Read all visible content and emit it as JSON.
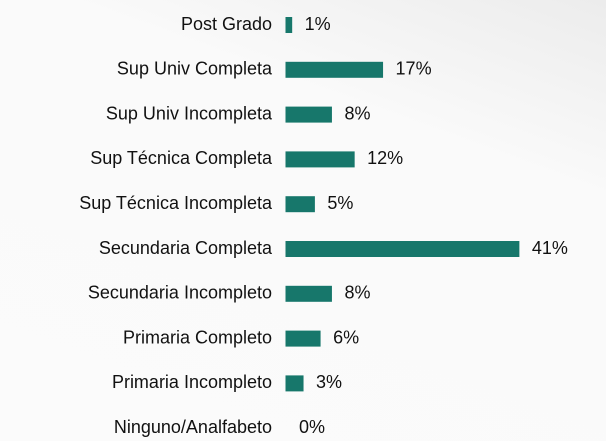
{
  "chart_data": {
    "type": "bar",
    "orientation": "horizontal",
    "categories": [
      "Post Grado",
      "Sup Univ Completa",
      "Sup Univ Incompleta",
      "Sup Técnica Completa",
      "Sup Técnica Incompleta",
      "Secundaria Completa",
      "Secundaria Incompleto",
      "Primaria Completo",
      "Primaria Incompleto",
      "Ninguno/Analfabeto"
    ],
    "values": [
      1,
      17,
      8,
      12,
      5,
      41,
      8,
      6,
      3,
      0
    ],
    "value_labels": [
      "1%",
      "17%",
      "8%",
      "12%",
      "5%",
      "41%",
      "8%",
      "6%",
      "3%",
      "0%"
    ],
    "color": "#17776b"
  }
}
